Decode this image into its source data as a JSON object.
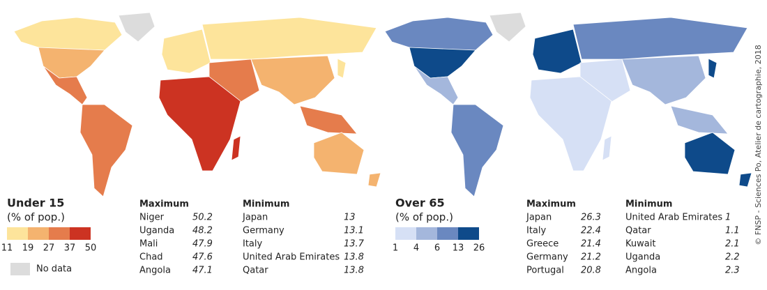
{
  "panels": [
    {
      "title": "Under 15",
      "subtitle": "(% of pop.)",
      "legend": {
        "breaks": [
          11,
          19,
          27,
          37,
          50
        ],
        "colors": [
          "#fde49b",
          "#f4b36f",
          "#e57c4c",
          "#cc3322"
        ]
      },
      "maximum": {
        "heading": "Maximum",
        "rows": [
          [
            "Niger",
            50.2
          ],
          [
            "Uganda",
            48.2
          ],
          [
            "Mali",
            47.9
          ],
          [
            "Chad",
            47.6
          ],
          [
            "Angola",
            47.1
          ]
        ]
      },
      "minimum": {
        "heading": "Minimum",
        "rows": [
          [
            "Japan",
            13
          ],
          [
            "Germany",
            13.1
          ],
          [
            "Italy",
            13.7
          ],
          [
            "United Arab Emirates",
            13.8
          ],
          [
            "Qatar",
            13.8
          ]
        ]
      }
    },
    {
      "title": "Over 65",
      "subtitle": "(% of pop.)",
      "legend": {
        "breaks": [
          1,
          4,
          6,
          13,
          26
        ],
        "colors": [
          "#d6e0f5",
          "#a4b7dc",
          "#6a88c0",
          "#0e4a8a"
        ]
      },
      "maximum": {
        "heading": "Maximum",
        "rows": [
          [
            "Japan",
            26.3
          ],
          [
            "Italy",
            22.4
          ],
          [
            "Greece",
            21.4
          ],
          [
            "Germany",
            21.2
          ],
          [
            "Portugal",
            20.8
          ]
        ]
      },
      "minimum": {
        "heading": "Minimum",
        "rows": [
          [
            "United Arab Emirates",
            1
          ],
          [
            "Qatar",
            1.1
          ],
          [
            "Kuwait",
            2.1
          ],
          [
            "Uganda",
            2.2
          ],
          [
            "Angola",
            2.3
          ]
        ]
      }
    }
  ],
  "no_data": {
    "label": "No data",
    "color": "#dcdcdc"
  },
  "credit": "© FNSP - Sciences Po, Atelier de cartographie, 2018"
}
